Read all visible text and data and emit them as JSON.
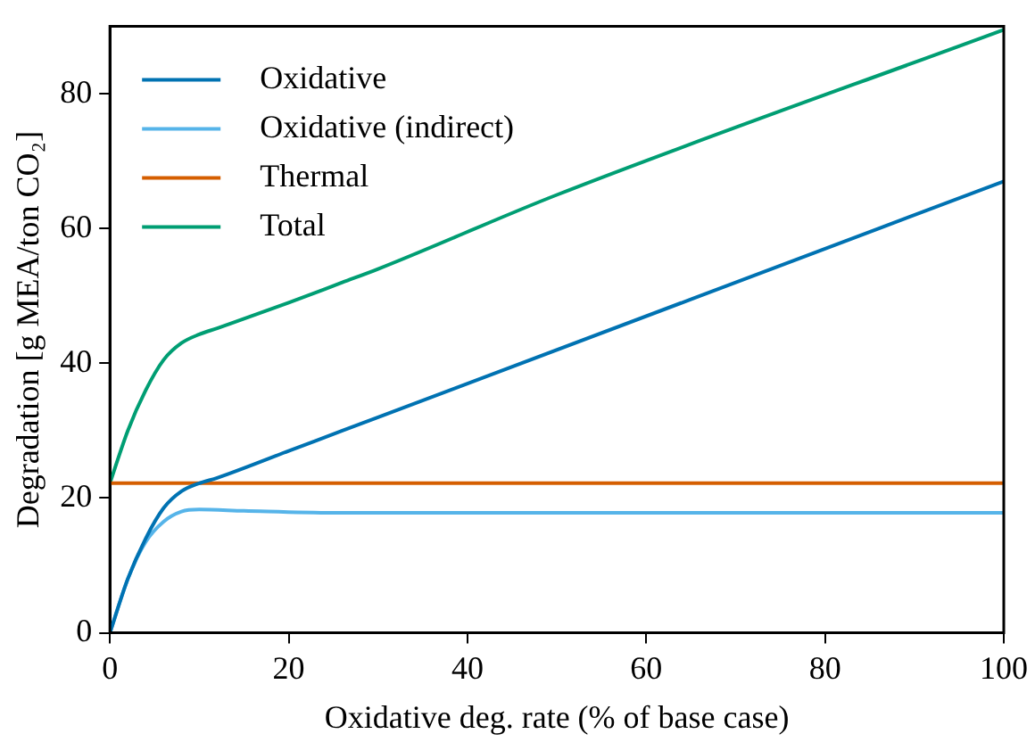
{
  "chart_data": {
    "type": "line",
    "xlabel": "Oxidative deg. rate (% of base case)",
    "ylabel": "Degradation [g MEA/ton CO₂]",
    "xlim": [
      0,
      100
    ],
    "xticks": [
      0,
      20,
      40,
      60,
      80,
      100
    ],
    "ylim": [
      0,
      90
    ],
    "yticks": [
      0,
      20,
      40,
      60,
      80
    ],
    "grid": false,
    "legend": "top left",
    "marker": "none",
    "line_style": "solid",
    "series": [
      {
        "name": "Oxidative",
        "color": "#0072b2",
        "x": [
          0,
          2,
          4,
          6,
          8,
          10,
          12,
          20,
          26,
          30,
          100
        ],
        "values": [
          0,
          8,
          14,
          18.5,
          21,
          22.2,
          23,
          27,
          30,
          32,
          67
        ]
      },
      {
        "name": "Oxidative (indirect)",
        "color": "#56b4e9",
        "x": [
          0,
          2,
          4,
          6,
          8,
          10,
          15,
          25,
          100
        ],
        "values": [
          0,
          8,
          13.5,
          16.5,
          18,
          18.3,
          18.1,
          17.8,
          17.8
        ]
      },
      {
        "name": "Thermal",
        "color": "#d55e00",
        "x": [
          0,
          100
        ],
        "values": [
          22.2,
          22.2
        ]
      },
      {
        "name": "Total",
        "color": "#009e73",
        "x": [
          0,
          2,
          4,
          6,
          8,
          10,
          12,
          20,
          26,
          30,
          50,
          100
        ],
        "values": [
          22.2,
          30,
          36,
          40.5,
          43,
          44.3,
          45.2,
          49,
          52,
          54,
          65,
          89.5
        ]
      }
    ]
  }
}
